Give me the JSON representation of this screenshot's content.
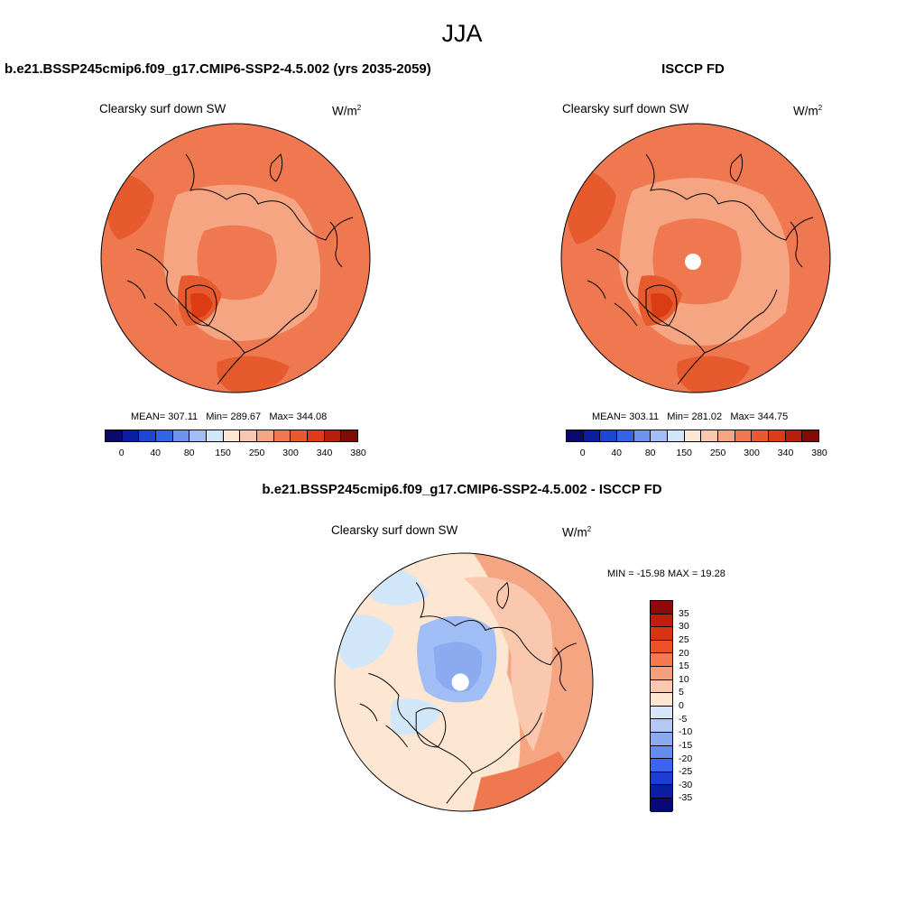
{
  "season": "JJA",
  "panels": {
    "model": {
      "title": "b.e21.BSSP245cmip6.f09_g17.CMIP6-SSP2-4.5.002 (yrs 2035-2059)",
      "variable": "Clearsky surf down SW",
      "units_base": "W/m",
      "units_exp": "2",
      "mean_label": "MEAN=",
      "mean": "307.11",
      "min_label": "Min=",
      "min": "289.67",
      "max_label": "Max=",
      "max": "344.08"
    },
    "obs": {
      "title": "ISCCP FD",
      "variable": "Clearsky surf down SW",
      "units_base": "W/m",
      "units_exp": "2",
      "mean_label": "MEAN=",
      "mean": "303.11",
      "min_label": "Min=",
      "min": "281.02",
      "max_label": "Max=",
      "max": "344.75"
    },
    "diff": {
      "title": "b.e21.BSSP245cmip6.f09_g17.CMIP6-SSP2-4.5.002 - ISCCP FD",
      "variable": "Clearsky surf down SW",
      "units_base": "W/m",
      "units_exp": "2",
      "minmax": "MIN = -15.98 MAX =  19.28"
    }
  },
  "abs_colorbar": {
    "colors": [
      "#0a0a6e",
      "#0a1ea0",
      "#1e46d2",
      "#3264e6",
      "#6e91f0",
      "#a0bef5",
      "#d2e6fa",
      "#fde6d2",
      "#fac8af",
      "#f5a582",
      "#f07850",
      "#e65a2d",
      "#dc3c14",
      "#b41e0a",
      "#820a05"
    ],
    "labels": [
      "0",
      "40",
      "80",
      "150",
      "250",
      "300",
      "340",
      "380"
    ]
  },
  "diff_colorbar": {
    "colors": [
      "#8c0a0a",
      "#be1e0a",
      "#dc3214",
      "#f05028",
      "#f57850",
      "#f5a07d",
      "#fac8aa",
      "#fde6d2",
      "#d7e6fa",
      "#b4c8f5",
      "#8caaf0",
      "#648cf0",
      "#3c64f0",
      "#1e3cd2",
      "#0a1ea0",
      "#050a78"
    ],
    "labels": [
      "35",
      "30",
      "25",
      "20",
      "15",
      "10",
      "5",
      "0",
      "-5",
      "-10",
      "-15",
      "-20",
      "-25",
      "-30",
      "-35"
    ]
  },
  "map_colors": {
    "base": "#f07850",
    "band": "#f5a582",
    "dark": "#e65a2d",
    "peak": "#dc3c14",
    "diff_base": "#fde6d2",
    "diff_pos": "#f5a582",
    "diff_mid": "#fac8af",
    "diff_neg1": "#d2e6fa",
    "diff_neg2": "#a0bef5",
    "diff_neg3": "#8caaf0",
    "diff_strong": "#f07850"
  }
}
